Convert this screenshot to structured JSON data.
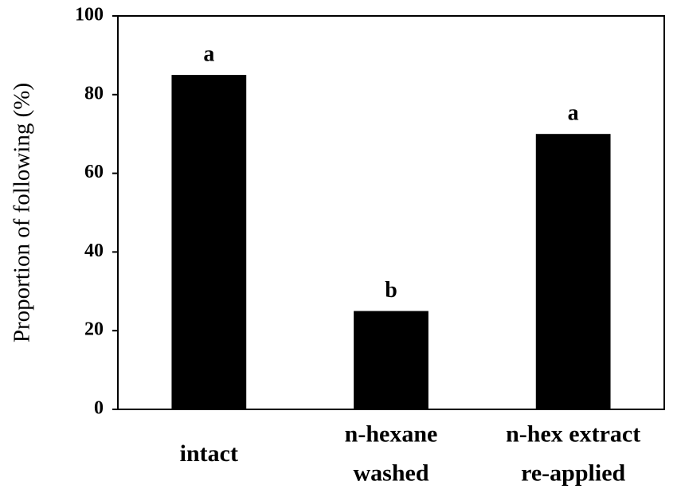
{
  "chart_data": {
    "type": "bar",
    "y_label": "Proportion of following (%)",
    "categories": [
      [
        "intact"
      ],
      [
        "n-hexane",
        "washed"
      ],
      [
        "n-hex extract",
        "re-applied"
      ]
    ],
    "values": [
      85,
      25,
      70
    ],
    "annotations": [
      "a",
      "b",
      "a"
    ],
    "color": "#000000",
    "ylim": [
      0,
      100
    ],
    "yticks": [
      0,
      20,
      40,
      60,
      80,
      100
    ],
    "grid": false
  }
}
